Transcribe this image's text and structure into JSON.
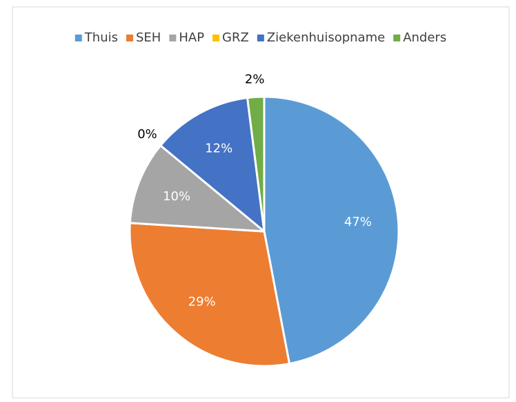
{
  "chart_data": {
    "type": "pie",
    "categories": [
      "Thuis",
      "SEH",
      "HAP",
      "GRZ",
      "Ziekenhuisopname",
      "Anders"
    ],
    "values": [
      47,
      29,
      10,
      0,
      12,
      2
    ],
    "value_labels": [
      "47%",
      "29%",
      "10%",
      "0%",
      "12%",
      "2%"
    ],
    "colors": [
      "#5b9bd5",
      "#ed7d31",
      "#a5a5a5",
      "#ffc000",
      "#4472c4",
      "#70ad47"
    ],
    "legend": "top"
  }
}
